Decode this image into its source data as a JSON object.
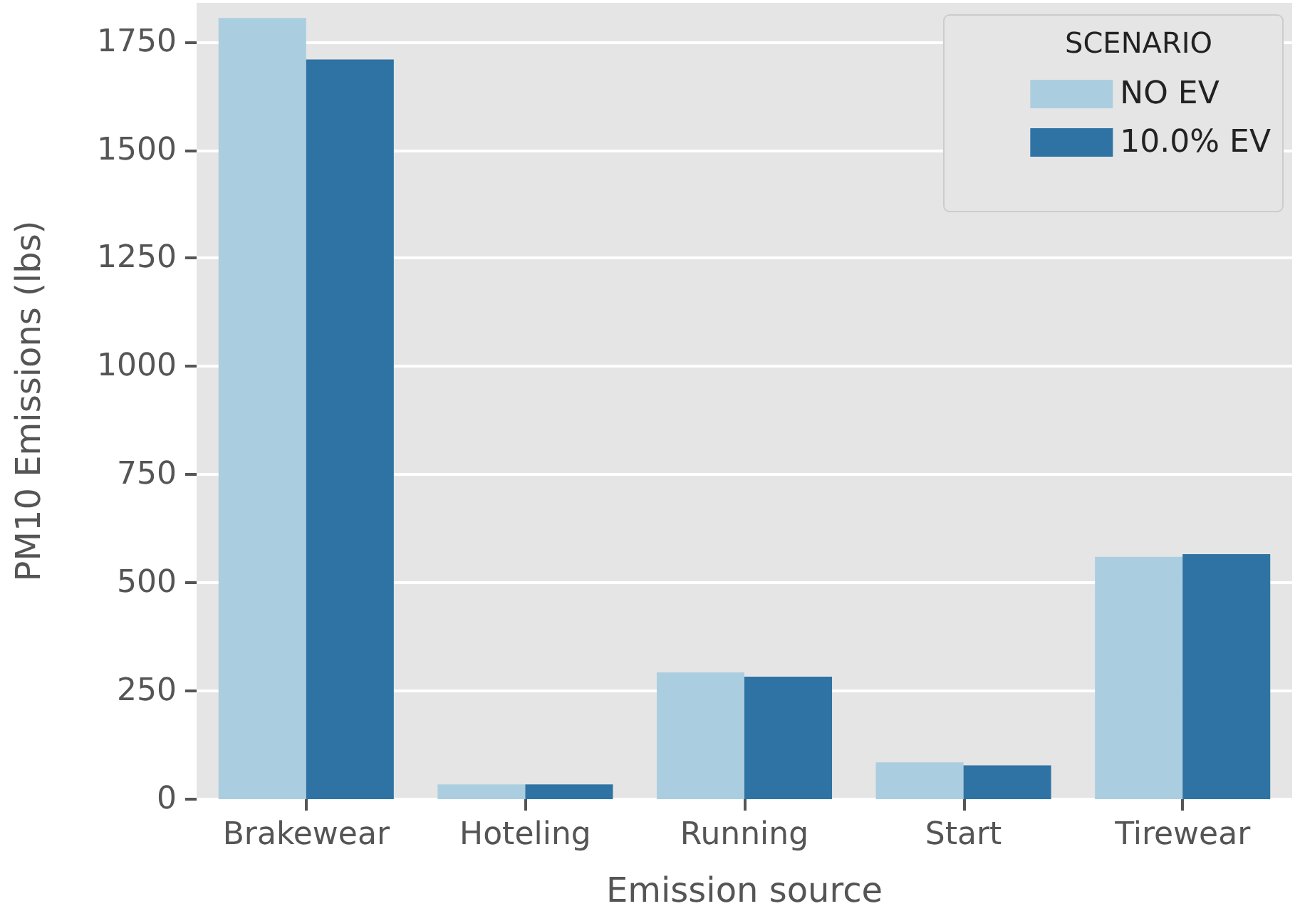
{
  "chart_data": {
    "type": "bar",
    "xlabel": "Emission source",
    "ylabel": "PM10 Emissions (lbs)",
    "legend_title": "SCENARIO",
    "categories": [
      "Brakewear",
      "Hoteling",
      "Running",
      "Start",
      "Tirewear"
    ],
    "series": [
      {
        "name": "NO EV",
        "color": "#abcde0",
        "values": [
          1805,
          34,
          293,
          85,
          560
        ]
      },
      {
        "name": "10.0% EV",
        "color": "#2e73a3",
        "values": [
          1709,
          34,
          283,
          78,
          566
        ]
      }
    ],
    "ylim": [
      0,
      1840
    ],
    "yticks": [
      0,
      250,
      500,
      750,
      1000,
      1250,
      1500,
      1750
    ],
    "grid": "y",
    "legend": "top right"
  }
}
